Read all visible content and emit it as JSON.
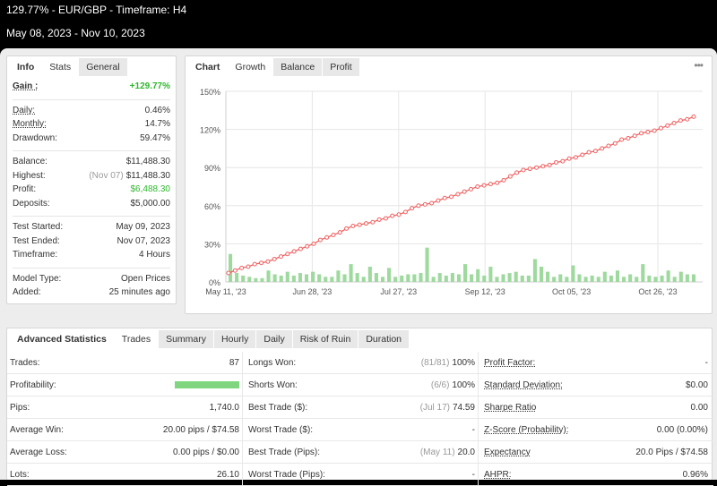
{
  "header": {
    "title": "129.77% - EUR/GBP - Timeframe: H4",
    "range": "May 08, 2023 - Nov 10, 2023"
  },
  "info": {
    "tabs": [
      "Info",
      "Stats",
      "General"
    ],
    "rows": [
      {
        "k": "Gain :",
        "v": "+129.77%"
      },
      {
        "k": "Daily:",
        "v": "0.46%"
      },
      {
        "k": "Monthly:",
        "v": "14.7%"
      },
      {
        "k": "Drawdown:",
        "v": "59.47%"
      },
      {
        "k": "Balance:",
        "v": "$11,488.30"
      },
      {
        "k": "Highest:",
        "note": "(Nov 07)",
        "v": "$11,488.30"
      },
      {
        "k": "Profit:",
        "v": "$6,488.30"
      },
      {
        "k": "Deposits:",
        "v": "$5,000.00"
      },
      {
        "k": "Test Started:",
        "v": "May 09, 2023"
      },
      {
        "k": "Test Ended:",
        "v": "Nov 07, 2023"
      },
      {
        "k": "Timeframe:",
        "v": "4 Hours"
      },
      {
        "k": "Model Type:",
        "v": "Open Prices"
      },
      {
        "k": "Added:",
        "v": "25 minutes ago"
      }
    ]
  },
  "chart": {
    "tabs": [
      "Chart",
      "Growth",
      "Balance",
      "Profit"
    ],
    "more": "•••",
    "colors": {
      "line": "#f06262",
      "bar": "#9ed99e",
      "grid": "#e6e6e6"
    }
  },
  "chart_data": {
    "type": "line",
    "title": "",
    "ylim": [
      0,
      150
    ],
    "yticks": [
      "150%",
      "120%",
      "90%",
      "60%",
      "30%",
      "0%"
    ],
    "xticks": [
      "May 11, '23",
      "Jun 28, '23",
      "Jul 27, '23",
      "Sep 12, '23",
      "Oct 05, '23",
      "Oct 26, '23"
    ],
    "series": [
      {
        "values": [
          7,
          9,
          11,
          12,
          14,
          15,
          16,
          18,
          20,
          22,
          24,
          26,
          28,
          30,
          33,
          35,
          37,
          39,
          42,
          44,
          45,
          46,
          47,
          49,
          50,
          52,
          53,
          55,
          58,
          60,
          61,
          62,
          64,
          66,
          67,
          69,
          71,
          73,
          75,
          76,
          77,
          78,
          80,
          83,
          86,
          88,
          89,
          90,
          91,
          92,
          94,
          95,
          97,
          98,
          100,
          102,
          103,
          105,
          107,
          109,
          112,
          113,
          115,
          117,
          118,
          119,
          121,
          123,
          125,
          127,
          128,
          130
        ]
      },
      {
        "values": [
          22,
          7,
          5,
          4,
          3,
          3,
          9,
          6,
          5,
          8,
          5,
          7,
          6,
          8,
          6,
          4,
          4,
          9,
          6,
          14,
          7,
          4,
          12,
          7,
          4,
          11,
          4,
          5,
          6,
          6,
          7,
          27,
          4,
          7,
          5,
          7,
          6,
          14,
          6,
          10,
          5,
          12,
          4,
          6,
          7,
          8,
          5,
          5,
          18,
          12,
          8,
          4,
          6,
          4,
          13,
          6,
          4,
          5,
          4,
          8,
          5,
          9,
          4,
          6,
          4,
          14,
          5,
          4,
          5,
          9,
          4,
          8,
          6,
          6
        ]
      }
    ]
  },
  "advanced": {
    "tabs": [
      "Advanced Statistics",
      "Trades",
      "Summary",
      "Hourly",
      "Daily",
      "Risk of Ruin",
      "Duration"
    ],
    "rows": [
      [
        {
          "k": "Trades:",
          "v": "87"
        },
        {
          "k": "Longs Won:",
          "note": "(81/81)",
          "v": "100%"
        },
        {
          "k": "Profit Factor:",
          "v": "-"
        }
      ],
      [
        {
          "k": "Profitability:",
          "bar": 1.0
        },
        {
          "k": "Shorts Won:",
          "note": "(6/6)",
          "v": "100%"
        },
        {
          "k": "Standard Deviation:",
          "v": "$0.00"
        }
      ],
      [
        {
          "k": "Pips:",
          "v": "1,740.0"
        },
        {
          "k": "Best Trade ($):",
          "note": "(Jul 17)",
          "v": "74.59"
        },
        {
          "k": "Sharpe Ratio",
          "v": "0.00"
        }
      ],
      [
        {
          "k": "Average Win:",
          "v": "20.00 pips / $74.58"
        },
        {
          "k": "Worst Trade ($):",
          "v": "-"
        },
        {
          "k": "Z-Score (Probability):",
          "v": "0.00 (0.00%)"
        }
      ],
      [
        {
          "k": "Average Loss:",
          "v": "0.00 pips / $0.00"
        },
        {
          "k": "Best Trade (Pips):",
          "note": "(May 11)",
          "v": "20.0"
        },
        {
          "k": "Expectancy",
          "v": "20.0 Pips / $74.58"
        }
      ],
      [
        {
          "k": "Lots:",
          "v": "26.10"
        },
        {
          "k": "Worst Trade (Pips):",
          "v": "-"
        },
        {
          "k": "AHPR:",
          "v": "0.96%"
        }
      ]
    ]
  }
}
